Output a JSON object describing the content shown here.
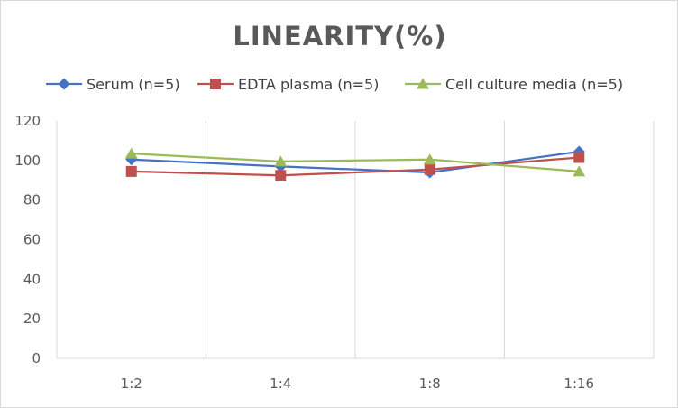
{
  "chart_data": {
    "type": "line",
    "title": "LINEARITY(%)",
    "xlabel": "",
    "ylabel": "",
    "categories": [
      "1:2",
      "1:4",
      "1:8",
      "1:16"
    ],
    "ylim": [
      0,
      120
    ],
    "yticks": [
      0,
      20,
      40,
      60,
      80,
      100,
      120
    ],
    "grid": "vertical",
    "legend_position": "top",
    "series": [
      {
        "name": "Serum (n=5)",
        "color": "#4472c4",
        "marker": "diamond",
        "values": [
          100.5,
          97,
          94,
          104.5
        ]
      },
      {
        "name": "EDTA plasma (n=5)",
        "color": "#c0504d",
        "marker": "square",
        "values": [
          94.5,
          92.5,
          95.5,
          101.5
        ]
      },
      {
        "name": "Cell culture media (n=5)",
        "color": "#9bbb59",
        "marker": "triangle",
        "values": [
          103.5,
          99.5,
          100.5,
          94.5
        ]
      }
    ]
  }
}
